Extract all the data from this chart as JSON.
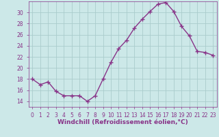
{
  "x": [
    0,
    1,
    2,
    3,
    4,
    5,
    6,
    7,
    8,
    9,
    10,
    11,
    12,
    13,
    14,
    15,
    16,
    17,
    18,
    19,
    20,
    21,
    22,
    23
  ],
  "y": [
    18,
    17,
    17.5,
    15.8,
    15,
    15,
    15,
    14,
    15,
    18,
    21,
    23.5,
    25,
    27.2,
    28.8,
    30.2,
    31.5,
    31.8,
    30.2,
    27.5,
    25.8,
    23,
    22.8,
    22.3
  ],
  "line_color": "#883388",
  "marker": "+",
  "marker_size": 4,
  "marker_linewidth": 1.0,
  "bg_color": "#cce8e8",
  "grid_color": "#aacccc",
  "xlabel": "Windchill (Refroidissement éolien,°C)",
  "ylim": [
    13,
    32
  ],
  "xlim": [
    -0.5,
    23.5
  ],
  "yticks": [
    14,
    16,
    18,
    20,
    22,
    24,
    26,
    28,
    30
  ],
  "xticks": [
    0,
    1,
    2,
    3,
    4,
    5,
    6,
    7,
    8,
    9,
    10,
    11,
    12,
    13,
    14,
    15,
    16,
    17,
    18,
    19,
    20,
    21,
    22,
    23
  ],
  "xlabel_fontsize": 6.5,
  "tick_fontsize": 5.5,
  "line_width": 1.0,
  "tick_color": "#883388",
  "label_color": "#883388"
}
